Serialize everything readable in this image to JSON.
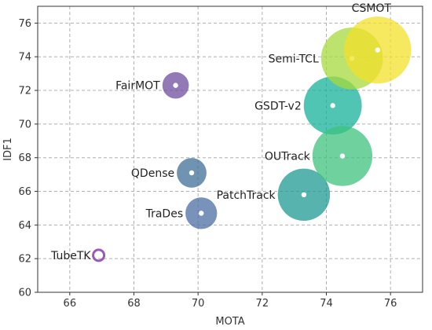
{
  "chart_data": {
    "type": "scatter",
    "title": "",
    "xlabel": "MOTA",
    "ylabel": "IDF1",
    "xlim": [
      65,
      77
    ],
    "ylim": [
      60,
      77
    ],
    "xticks": [
      66,
      68,
      70,
      72,
      74,
      76
    ],
    "yticks": [
      60,
      62,
      64,
      66,
      68,
      70,
      72,
      74,
      76
    ],
    "grid": true,
    "points": [
      {
        "label": "TubeTK",
        "x": 66.9,
        "y": 62.2,
        "color": "#9b59b6"
      },
      {
        "label": "FairMOT",
        "x": 69.3,
        "y": 72.3,
        "color": "#6f4e9e"
      },
      {
        "label": "QDense",
        "x": 69.8,
        "y": 67.1,
        "color": "#3f6f96"
      },
      {
        "label": "TraDes",
        "x": 70.1,
        "y": 64.7,
        "color": "#4b6ea3"
      },
      {
        "label": "PatchTrack",
        "x": 73.3,
        "y": 65.8,
        "color": "#1f9a93"
      },
      {
        "label": "GSDT-v2",
        "x": 74.2,
        "y": 71.1,
        "color": "#15b29a"
      },
      {
        "label": "OUTrack",
        "x": 74.5,
        "y": 68.1,
        "color": "#3ec27e"
      },
      {
        "label": "Semi-TCL",
        "x": 74.8,
        "y": 73.9,
        "color": "#a6d93c"
      },
      {
        "label": "CSMOT",
        "x": 75.6,
        "y": 74.4,
        "color": "#f3e02a"
      }
    ]
  }
}
